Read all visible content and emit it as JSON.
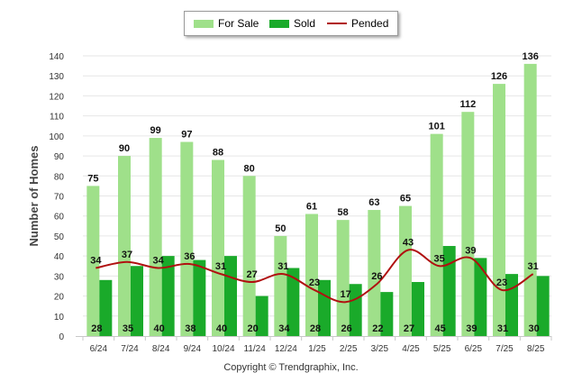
{
  "footer": "Copyright © Trendgraphix, Inc.",
  "colors": {
    "for_sale": "#9fe08a",
    "sold": "#1aaa2a",
    "pended": "#b01010"
  },
  "chart_data": {
    "type": "bar",
    "title": "",
    "xlabel": "",
    "ylabel": "Number of Homes",
    "ylim": [
      0,
      140
    ],
    "yticks": [
      0,
      10,
      20,
      30,
      40,
      50,
      60,
      70,
      80,
      90,
      100,
      110,
      120,
      130,
      140
    ],
    "grid": true,
    "legend_position": "top-center",
    "categories": [
      "6/24",
      "7/24",
      "8/24",
      "9/24",
      "10/24",
      "11/24",
      "12/24",
      "1/25",
      "2/25",
      "3/25",
      "4/25",
      "5/25",
      "6/25",
      "7/25",
      "8/25"
    ],
    "series": [
      {
        "name": "For Sale",
        "type": "bar",
        "values": [
          75,
          90,
          99,
          97,
          88,
          80,
          50,
          61,
          58,
          63,
          65,
          101,
          112,
          126,
          136
        ]
      },
      {
        "name": "Sold",
        "type": "bar",
        "values": [
          28,
          35,
          40,
          38,
          40,
          20,
          34,
          28,
          26,
          22,
          27,
          45,
          39,
          31,
          30
        ]
      },
      {
        "name": "Pended",
        "type": "line",
        "values": [
          34,
          37,
          34,
          36,
          31,
          27,
          31,
          23,
          17,
          26,
          43,
          35,
          39,
          23,
          31
        ]
      }
    ]
  }
}
